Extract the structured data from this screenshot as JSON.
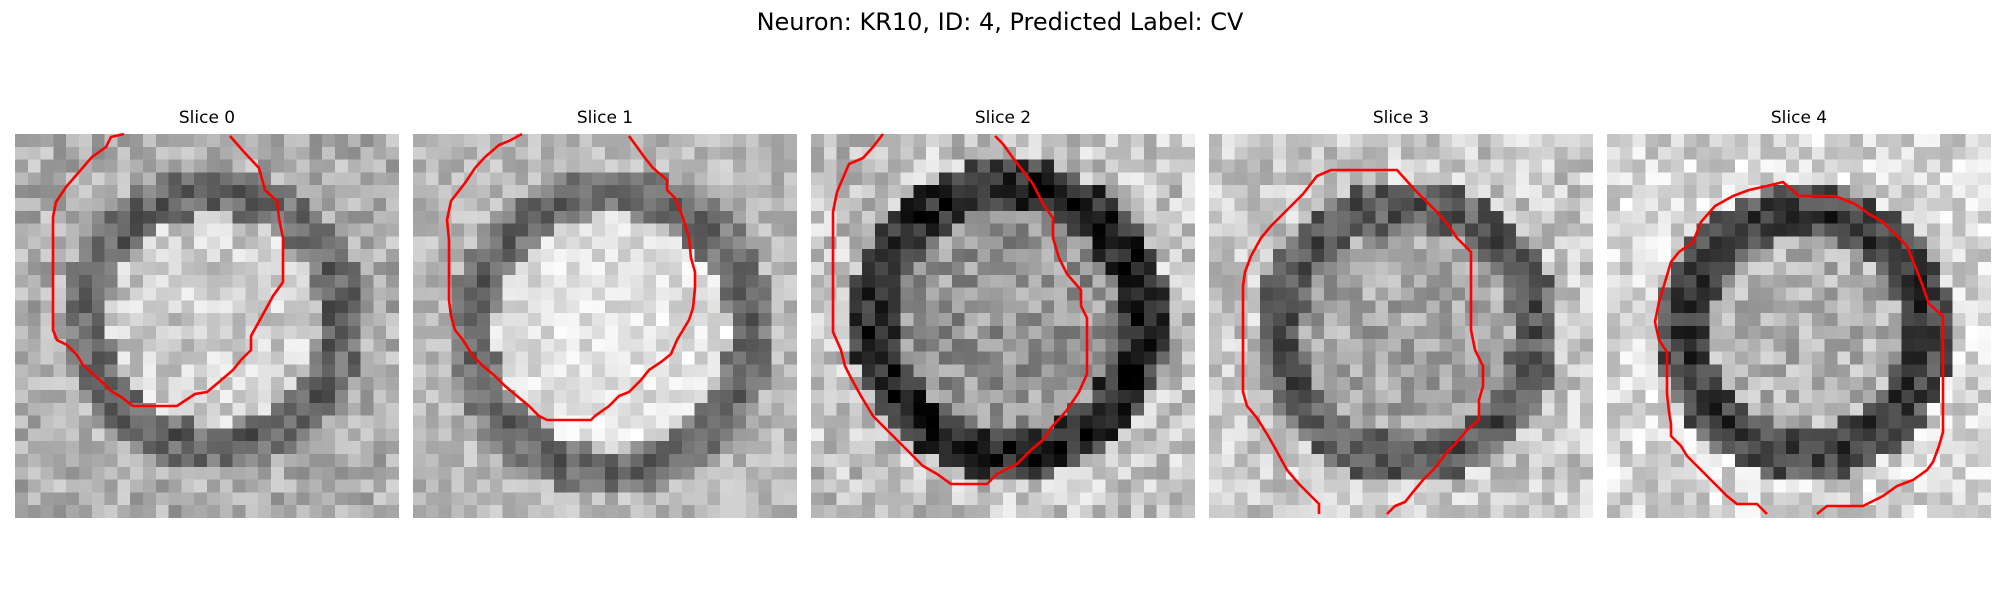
{
  "figure": {
    "title": "Neuron: KR10, ID: 4, Predicted Label: CV",
    "contour_color": "#ff0000",
    "colormap": "gray",
    "panels": [
      {
        "title": "Slice 0"
      },
      {
        "title": "Slice 1"
      },
      {
        "title": "Slice 2"
      },
      {
        "title": "Slice 3"
      },
      {
        "title": "Slice 4"
      }
    ]
  }
}
